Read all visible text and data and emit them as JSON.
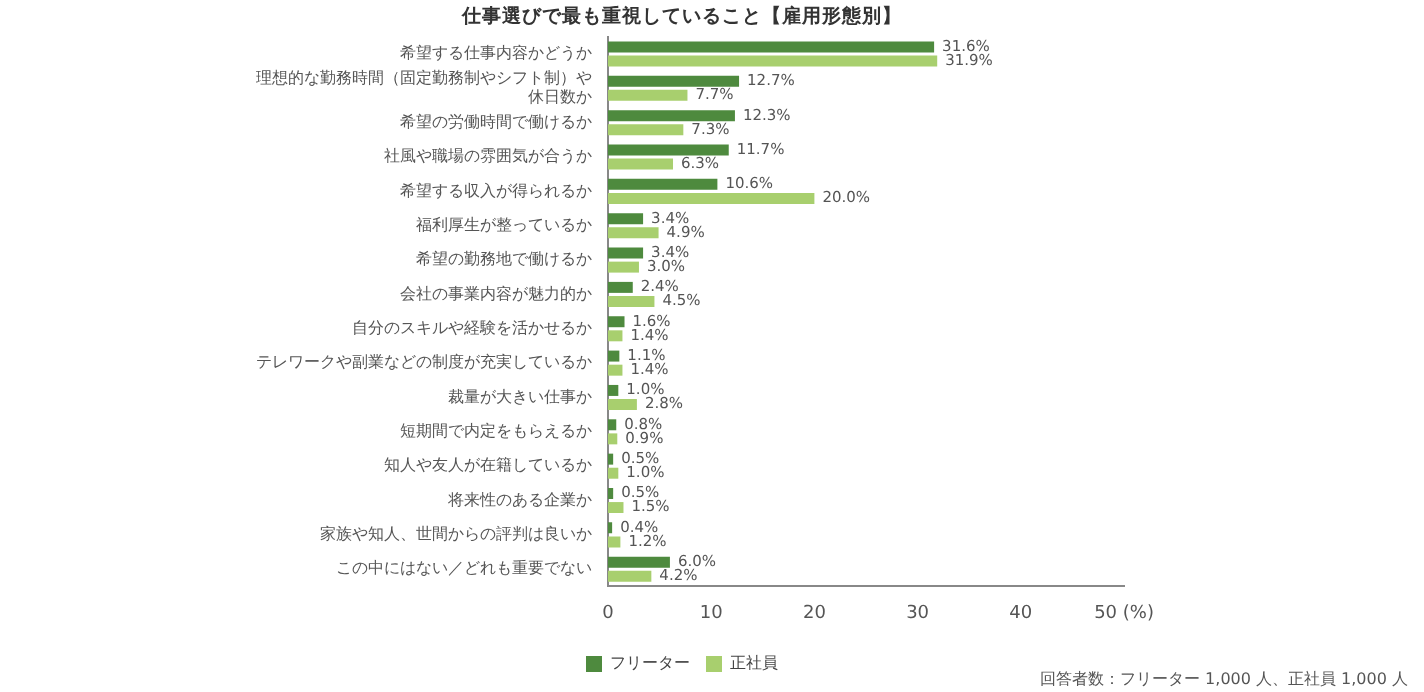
{
  "chart_data": {
    "type": "bar",
    "orientation": "horizontal",
    "title": "仕事選びで最も重視していること【雇用形態別】",
    "categories": [
      "希望する仕事内容かどうか",
      "理想的な勤務時間（固定勤務制やシフト制）や休日数か",
      "希望の労働時間で働けるか",
      "社風や職場の雰囲気が合うか",
      "希望する収入が得られるか",
      "福利厚生が整っているか",
      "希望の勤務地で働けるか",
      "会社の事業内容が魅力的か",
      "自分のスキルや経験を活かせるか",
      "テレワークや副業などの制度が充実しているか",
      "裁量が大きい仕事か",
      "短期間で内定をもらえるか",
      "知人や友人が在籍しているか",
      "将来性のある企業か",
      "家族や知人、世間からの評判は良いか",
      "この中にはない／どれも重要でない"
    ],
    "series": [
      {
        "name": "フリーター",
        "color": "#4e8a3e",
        "values": [
          31.6,
          12.7,
          12.3,
          11.7,
          10.6,
          3.4,
          3.4,
          2.4,
          1.6,
          1.1,
          1.0,
          0.8,
          0.5,
          0.5,
          0.4,
          6.0
        ],
        "value_labels": [
          "31.6%",
          "12.7%",
          "12.3%",
          "11.7%",
          "10.6%",
          "3.4%",
          "3.4%",
          "2.4%",
          "1.6%",
          "1.1%",
          "1.0%",
          "0.8%",
          "0.5%",
          "0.5%",
          "0.4%",
          "6.0%"
        ]
      },
      {
        "name": "正社員",
        "color": "#a8cf6e",
        "values": [
          31.9,
          7.7,
          7.3,
          6.3,
          20.0,
          4.9,
          3.0,
          4.5,
          1.4,
          1.4,
          2.8,
          0.9,
          1.0,
          1.5,
          1.2,
          4.2
        ],
        "value_labels": [
          "31.9%",
          "7.7%",
          "7.3%",
          "6.3%",
          "20.0%",
          "4.9%",
          "3.0%",
          "4.5%",
          "1.4%",
          "1.4%",
          "2.8%",
          "0.9%",
          "1.0%",
          "1.5%",
          "1.2%",
          "4.2%"
        ]
      }
    ],
    "xlim": [
      0,
      50
    ],
    "xticks": [
      0,
      10,
      20,
      30,
      40,
      {
        "value": 50,
        "label": "50 (%)"
      }
    ],
    "grid": false,
    "legend": "bottom",
    "annotations": [
      "回答者数：フリーター 1,000 人、正社員 1,000 人"
    ]
  }
}
